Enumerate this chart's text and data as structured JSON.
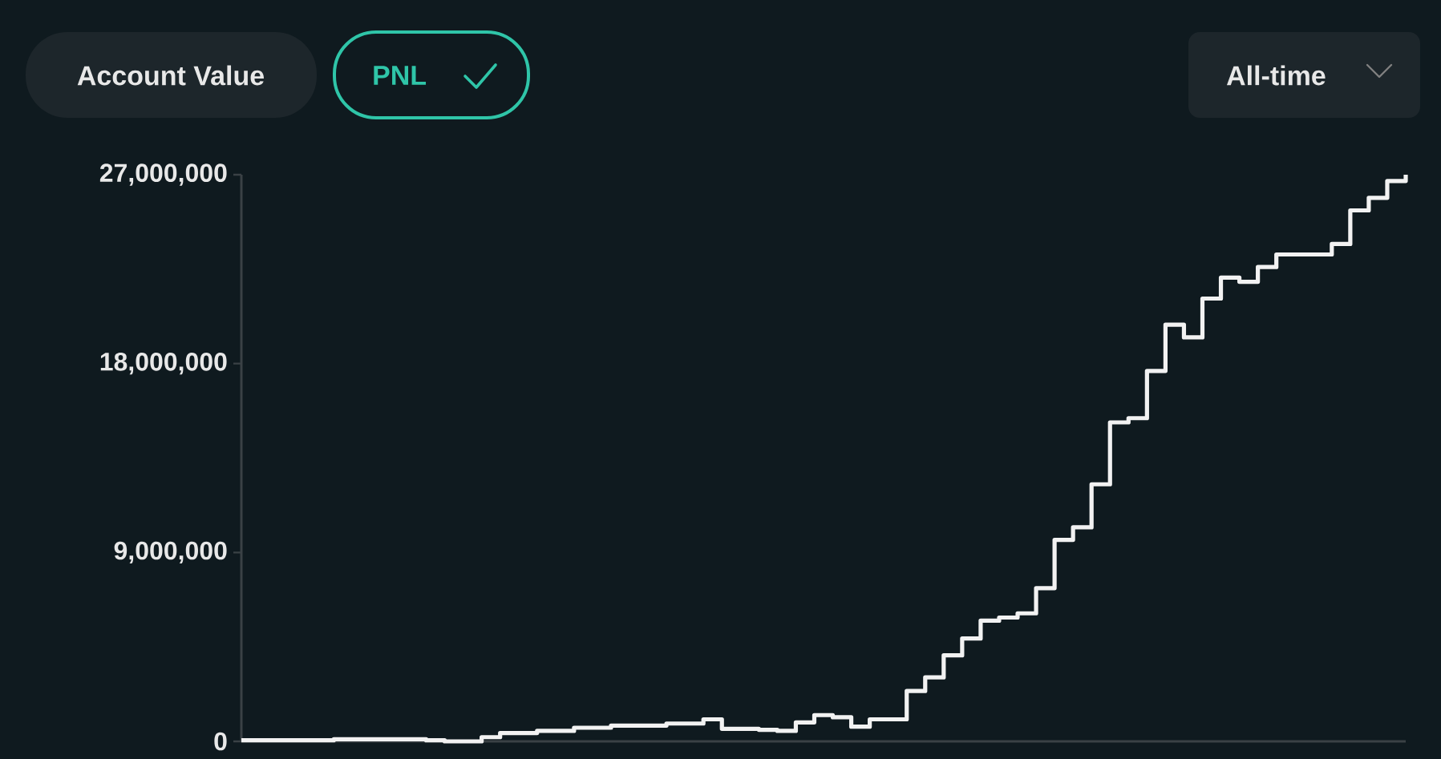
{
  "chart_data": {
    "type": "step",
    "categories": [
      null,
      null,
      null,
      null,
      null,
      null,
      null,
      null,
      null,
      null,
      null,
      null,
      null,
      null,
      null,
      null,
      null,
      null,
      null,
      null,
      null,
      null,
      null,
      null,
      null,
      null,
      null,
      null,
      null,
      null,
      null,
      null,
      null,
      null,
      null,
      null,
      null,
      null,
      null,
      null,
      null,
      null,
      null,
      null,
      null,
      null,
      null,
      null,
      null,
      null,
      null,
      null,
      null,
      null,
      null,
      null,
      null,
      null,
      null,
      null,
      null,
      null,
      null,
      null
    ],
    "values": [
      50000,
      50000,
      50000,
      50000,
      50000,
      100000,
      100000,
      100000,
      100000,
      100000,
      50000,
      0,
      0,
      200000,
      400000,
      400000,
      500000,
      500000,
      650000,
      650000,
      750000,
      750000,
      750000,
      850000,
      850000,
      1050000,
      600000,
      600000,
      550000,
      500000,
      900000,
      1250000,
      1150000,
      700000,
      1050000,
      1050000,
      2400000,
      3050000,
      4100000,
      4900000,
      5750000,
      5900000,
      6100000,
      7300000,
      9600000,
      10200000,
      12250000,
      15200000,
      15400000,
      17650000,
      19850000,
      19250000,
      21100000,
      22100000,
      21900000,
      22600000,
      23200000,
      23200000,
      23200000,
      23700000,
      25300000,
      25900000,
      26700000,
      27000000
    ],
    "color": "#f2f2f2",
    "ylim": [
      0,
      27000000
    ],
    "yticks": [
      {
        "value": 0,
        "label": "0"
      },
      {
        "value": 9000000,
        "label": "9,000,000"
      },
      {
        "value": 18000000,
        "label": "18,000,000"
      },
      {
        "value": 27000000,
        "label": "27,000,000"
      }
    ],
    "tick_labels": "y",
    "annotations": [
      "Account Value",
      "PNL",
      "All-time"
    ]
  }
}
